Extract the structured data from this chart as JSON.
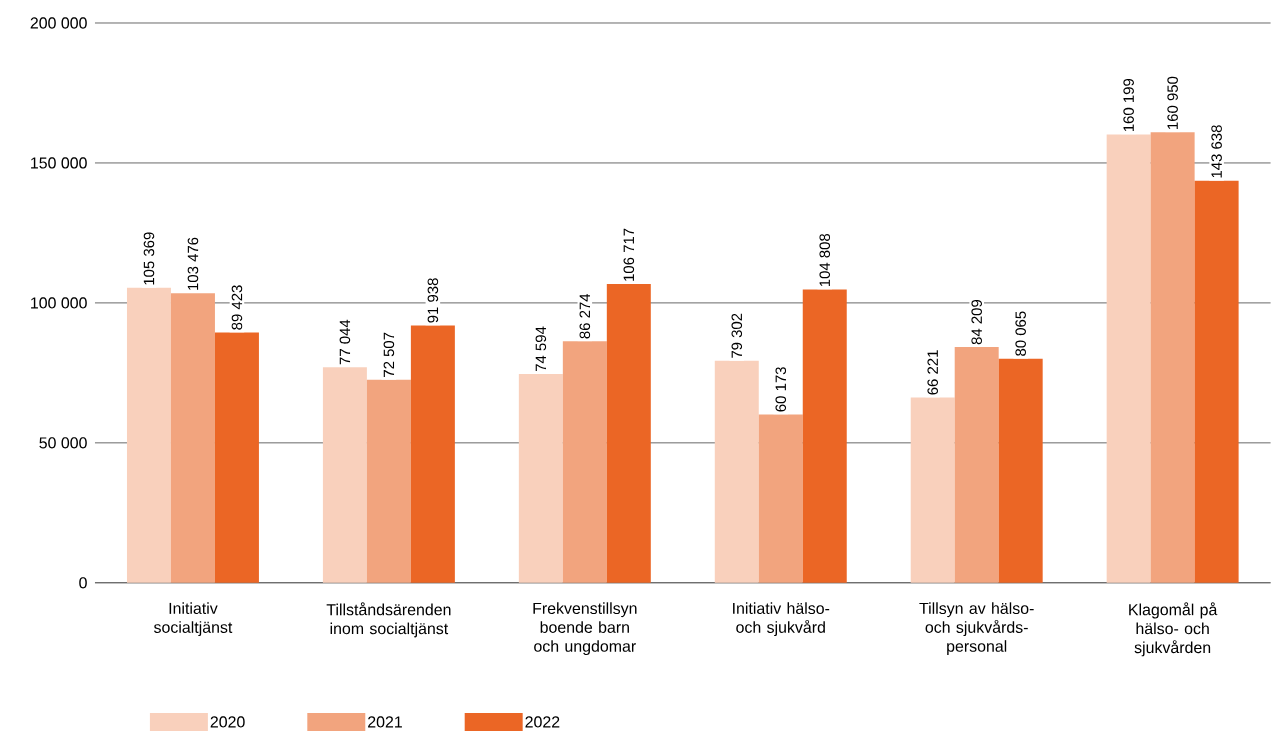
{
  "chart_data": {
    "type": "bar",
    "categories": [
      "Initiativ socialtjänst",
      "Tillståndsärenden inom socialtjänst",
      "Frekvenstillsyn boende barn och ungdomar",
      "Initiativ hälso- och sjukvård",
      "Tillsyn av hälso- och sjukvårds-personal",
      "Klagomål på hälso- och sjukvården"
    ],
    "series": [
      {
        "name": "2020",
        "color": "#f9d0bc",
        "values": [
          105369,
          77044,
          74594,
          79302,
          66221,
          160199
        ],
        "value_labels": [
          "105 369",
          "77 044",
          "74 594",
          "79 302",
          "66 221",
          "160 199"
        ]
      },
      {
        "name": "2021",
        "color": "#f2a47e",
        "values": [
          103476,
          72507,
          86274,
          60173,
          84209,
          160950
        ],
        "value_labels": [
          "103 476",
          "72 507",
          "86 274",
          "60 173",
          "84 209",
          "160 950"
        ]
      },
      {
        "name": "2022",
        "color": "#eb6625",
        "values": [
          89423,
          91938,
          106717,
          104808,
          80065,
          143638
        ],
        "value_labels": [
          "89 423",
          "91 938",
          "106 717",
          "104 808",
          "80 065",
          "143 638"
        ]
      }
    ],
    "ylim": [
      0,
      200000
    ],
    "yticks": [
      {
        "value": 0,
        "label": "0"
      },
      {
        "value": 50000,
        "label": "50 000"
      },
      {
        "value": 100000,
        "label": "100 000"
      },
      {
        "value": 150000,
        "label": "150 000"
      },
      {
        "value": 200000,
        "label": "200 000"
      }
    ],
    "grid": "y",
    "legend": "bottom"
  }
}
